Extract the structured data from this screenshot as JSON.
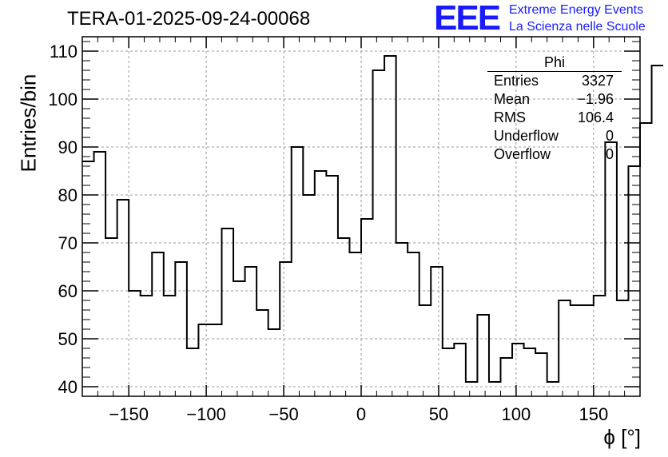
{
  "header": {
    "title": "TERA-01-2025-09-24-00068",
    "logo": "EEE",
    "logo_line1": "Extreme Energy Events",
    "logo_line2": "La Scienza nelle Scuole"
  },
  "stats": {
    "name": "Phi",
    "rows": [
      {
        "label": "Entries",
        "value": "3327"
      },
      {
        "label": "Mean",
        "value": "−1.96"
      },
      {
        "label": "RMS",
        "value": "106.4"
      },
      {
        "label": "Underflow",
        "value": "0"
      },
      {
        "label": "Overflow",
        "value": "0"
      }
    ]
  },
  "chart_data": {
    "type": "bar",
    "style": "step-histogram",
    "title": "TERA-01-2025-09-24-00068",
    "xlabel": "ϕ [°]",
    "ylabel": "Entries/bin",
    "xlim": [
      -180,
      180
    ],
    "ylim": [
      38,
      113
    ],
    "grid": true,
    "bin_edges_start": -180,
    "bin_width": 7.5,
    "values": [
      87,
      89,
      71,
      79,
      60,
      59,
      68,
      59,
      66,
      48,
      53,
      53,
      73,
      62,
      65,
      56,
      52,
      66,
      90,
      80,
      85,
      84,
      71,
      68,
      75,
      106,
      109,
      70,
      68,
      57,
      65,
      48,
      49,
      41,
      55,
      41,
      46,
      49,
      48,
      47,
      41,
      58,
      57,
      57,
      59,
      91,
      58,
      86,
      95,
      107
    ],
    "x_ticks": [
      -150,
      -100,
      -50,
      0,
      50,
      100,
      150
    ],
    "x_tick_labels": [
      "−150",
      "−100",
      "−50",
      "0",
      "50",
      "100",
      "150"
    ],
    "y_ticks": [
      40,
      50,
      60,
      70,
      80,
      90,
      100,
      110
    ],
    "y_tick_labels": [
      "40",
      "50",
      "60",
      "70",
      "80",
      "90",
      "100",
      "110"
    ]
  }
}
